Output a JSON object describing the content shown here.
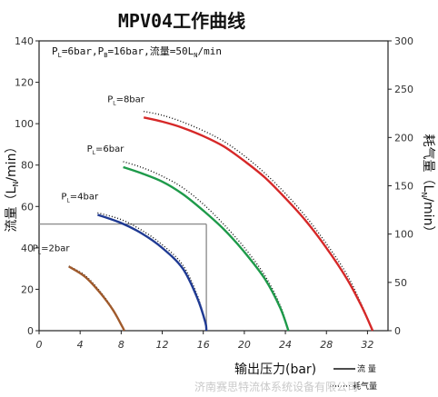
{
  "chart_data": {
    "type": "line",
    "title": "MPV04工作曲线",
    "subtitle": "P_L=6bar, P_B=16bar, 流量=50L_N/min",
    "subtitle_parts": {
      "pl_sym": "P",
      "pl_sub": "L",
      "pl_val": "=6bar,",
      "pb_sym": "P",
      "pb_sub": "B",
      "pb_val": "=16bar,",
      "flow_lead": "流量=50L",
      "flow_sub": "N",
      "flow_tail": "/min"
    },
    "xlabel": "输出压力(bar)",
    "ylabel_left_lead": "流量（L",
    "ylabel_left_sub": "N",
    "ylabel_left_tail": "/min）",
    "ylabel_right_lead": "耗气量（L",
    "ylabel_right_sub": "N",
    "ylabel_right_tail": "/min）",
    "xlim": [
      0,
      34
    ],
    "ylim_left": [
      0,
      140
    ],
    "ylim_right": [
      0,
      300
    ],
    "xticks": [
      0,
      4,
      8,
      12,
      16,
      20,
      24,
      28,
      32
    ],
    "yticks_left": [
      0,
      20,
      40,
      60,
      80,
      100,
      120,
      140
    ],
    "yticks_right": [
      0,
      50,
      100,
      150,
      200,
      250,
      300
    ],
    "grid": false,
    "reference_lines": {
      "y_left": 51.5,
      "x": 16.3
    },
    "legend": {
      "solid_label": "流  量",
      "dotted_label": "耗气量",
      "position": "bottom-right"
    },
    "series": [
      {
        "name": "P_L=2bar",
        "label_sym": "P",
        "label_sub": "L",
        "label_val": "=2bar",
        "color": "#a05a2c",
        "flow": [
          [
            2.9,
            31
          ],
          [
            4.5,
            26
          ],
          [
            6.0,
            18
          ],
          [
            7.2,
            10
          ],
          [
            8.1,
            2
          ],
          [
            8.3,
            0
          ]
        ],
        "air": [
          [
            2.9,
            67
          ],
          [
            4.5,
            57
          ],
          [
            6.0,
            40
          ],
          [
            7.2,
            22
          ],
          [
            8.1,
            4
          ],
          [
            8.3,
            0
          ]
        ]
      },
      {
        "name": "P_L=4bar",
        "label_sym": "P",
        "label_sub": "L",
        "label_val": "=4bar",
        "color": "#1f3a93",
        "flow": [
          [
            5.7,
            56
          ],
          [
            8.0,
            52
          ],
          [
            10.0,
            47
          ],
          [
            12.0,
            40
          ],
          [
            14.0,
            30
          ],
          [
            15.4,
            16
          ],
          [
            16.2,
            4
          ],
          [
            16.3,
            0
          ]
        ],
        "air": [
          [
            5.7,
            122
          ],
          [
            8.0,
            115
          ],
          [
            10.0,
            104
          ],
          [
            12.0,
            89
          ],
          [
            14.0,
            68
          ],
          [
            15.4,
            37
          ],
          [
            16.2,
            8
          ],
          [
            16.3,
            0
          ]
        ]
      },
      {
        "name": "P_L=6bar",
        "label_sym": "P",
        "label_sub": "L",
        "label_val": "=6bar",
        "color": "#1e9a4a",
        "flow": [
          [
            8.2,
            79
          ],
          [
            10.0,
            76
          ],
          [
            12.0,
            72
          ],
          [
            14.0,
            66
          ],
          [
            16.0,
            58
          ],
          [
            18.0,
            49
          ],
          [
            20.0,
            38
          ],
          [
            22.0,
            25
          ],
          [
            23.5,
            11
          ],
          [
            24.3,
            0
          ]
        ],
        "air": [
          [
            8.2,
            175
          ],
          [
            10.0,
            169
          ],
          [
            12.0,
            160
          ],
          [
            14.0,
            148
          ],
          [
            16.0,
            131
          ],
          [
            18.0,
            110
          ],
          [
            20.0,
            86
          ],
          [
            22.0,
            57
          ],
          [
            23.5,
            26
          ],
          [
            24.3,
            0
          ]
        ]
      },
      {
        "name": "P_L=8bar",
        "label_sym": "P",
        "label_sub": "L",
        "label_val": "=8bar",
        "color": "#d62828",
        "flow": [
          [
            10.2,
            103
          ],
          [
            12.0,
            101
          ],
          [
            14.0,
            98
          ],
          [
            16.0,
            94
          ],
          [
            18.0,
            89
          ],
          [
            20.0,
            82
          ],
          [
            22.0,
            74
          ],
          [
            24.0,
            64
          ],
          [
            26.0,
            53
          ],
          [
            28.0,
            40
          ],
          [
            30.0,
            25
          ],
          [
            31.5,
            11
          ],
          [
            32.5,
            0
          ]
        ],
        "air": [
          [
            10.2,
            227
          ],
          [
            12.0,
            223
          ],
          [
            14.0,
            216
          ],
          [
            16.0,
            207
          ],
          [
            18.0,
            196
          ],
          [
            20.0,
            181
          ],
          [
            22.0,
            163
          ],
          [
            24.0,
            142
          ],
          [
            26.0,
            118
          ],
          [
            28.0,
            90
          ],
          [
            30.0,
            58
          ],
          [
            31.5,
            25
          ],
          [
            32.5,
            0
          ]
        ]
      }
    ]
  },
  "watermark": "济南赛思特流体系统设备有限公司"
}
